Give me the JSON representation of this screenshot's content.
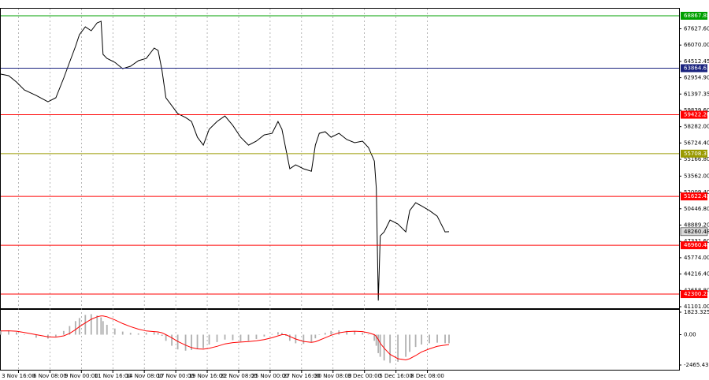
{
  "chart_data": [
    {
      "type": "line",
      "x": [
        0,
        4,
        8,
        12,
        18,
        24,
        28,
        32,
        35,
        38,
        40,
        43,
        46,
        49,
        51,
        52,
        54,
        58,
        62,
        66,
        70,
        74,
        78,
        80,
        82,
        84,
        87,
        90,
        94,
        97,
        100,
        103,
        106,
        110,
        114,
        118,
        122,
        126,
        130,
        134,
        138,
        141,
        143,
        145,
        147,
        150,
        154,
        158,
        160,
        162,
        165,
        168,
        172,
        176,
        180,
        184,
        187,
        190,
        191,
        192,
        193,
        195,
        198,
        202,
        206,
        208,
        211,
        214,
        218,
        222,
        226,
        228
      ],
      "series": [
        {
          "color": "#000000",
          "values": [
            63300,
            63150,
            62540,
            61790,
            61260,
            60660,
            61040,
            62920,
            64430,
            65930,
            67060,
            67810,
            67440,
            68190,
            68340,
            65180,
            64800,
            64430,
            63820,
            64050,
            64580,
            64800,
            65780,
            65560,
            63670,
            61040,
            60280,
            59530,
            59150,
            58780,
            57270,
            56520,
            58030,
            58780,
            59300,
            58400,
            57270,
            56520,
            56900,
            57500,
            57650,
            58780,
            58030,
            56140,
            54260,
            54640,
            54260,
            54030,
            56520,
            57650,
            57800,
            57270,
            57650,
            57050,
            56750,
            56900,
            56290,
            55010,
            52380,
            41690,
            47860,
            48240,
            49370,
            48990,
            48240,
            50270,
            51020,
            50720,
            50270,
            49740,
            48240,
            48260.48
          ]
        }
      ],
      "xlim": [
        0,
        345
      ],
      "xticks": [
        {
          "value": 9,
          "label": "3 Nov 16:00"
        },
        {
          "value": 25,
          "label": "6 Nov 08:00"
        },
        {
          "value": 41,
          "label": "9 Nov 00:00"
        },
        {
          "value": 57,
          "label": "11 Nov 16:00"
        },
        {
          "value": 73,
          "label": "14 Nov 08:00"
        },
        {
          "value": 89,
          "label": "17 Nov 00:00"
        },
        {
          "value": 105,
          "label": "19 Nov 16:00"
        },
        {
          "value": 121,
          "label": "22 Nov 08:00"
        },
        {
          "value": 137,
          "label": "25 Nov 00:00"
        },
        {
          "value": 153,
          "label": "27 Nov 16:00"
        },
        {
          "value": 169,
          "label": "30 Nov 08:00"
        },
        {
          "value": 185,
          "label": "3 Dec 00:00"
        },
        {
          "value": 201,
          "label": "5 Dec 16:00"
        },
        {
          "value": 217,
          "label": "8 Dec 08:00"
        }
      ],
      "ylim": [
        40950,
        69545
      ],
      "yticks": [
        {
          "value": 67627.6,
          "label": "67627.60"
        },
        {
          "value": 66070,
          "label": "66070.00"
        },
        {
          "value": 64512.45,
          "label": "64512.45"
        },
        {
          "value": 62954.9,
          "label": "62954.90"
        },
        {
          "value": 61397.35,
          "label": "61397.35"
        },
        {
          "value": 59839.6,
          "label": "59839.60"
        },
        {
          "value": 58282,
          "label": "58282.00"
        },
        {
          "value": 56724.4,
          "label": "56724.40"
        },
        {
          "value": 55166.8,
          "label": "55166.80"
        },
        {
          "value": 53562,
          "label": "53562.00"
        },
        {
          "value": 52009.4,
          "label": "52009.40"
        },
        {
          "value": 50446.8,
          "label": "50446.80"
        },
        {
          "value": 48889.2,
          "label": "48889.20"
        },
        {
          "value": 47331.6,
          "label": "47331.60"
        },
        {
          "value": 45774,
          "label": "45774.00"
        },
        {
          "value": 44216.4,
          "label": "44216.40"
        },
        {
          "value": 42658.8,
          "label": "42658.80"
        },
        {
          "value": 41101,
          "label": "41101.00"
        }
      ],
      "levels": [
        {
          "value": 68867.88,
          "label": "68867.88",
          "color": "#00a000"
        },
        {
          "value": 63864.63,
          "label": "63864.63",
          "color": "#1a237e"
        },
        {
          "value": 59422.2,
          "label": "59422.20",
          "color": "#ff0000"
        },
        {
          "value": 55708.37,
          "label": "55708.37",
          "color": "#9a9a00"
        },
        {
          "value": 51622.42,
          "label": "51622.42",
          "color": "#ff0000"
        },
        {
          "value": 46960.48,
          "label": "46960.48",
          "color": "#ff0000"
        },
        {
          "value": 42300.22,
          "label": "42300.22",
          "color": "#ff0000"
        }
      ]
    },
    {
      "type": "macd",
      "histogram": {
        "color": "#b0b0b0",
        "values": [
          320,
          350,
          200,
          0,
          -250,
          -320,
          -150,
          300,
          700,
          1100,
          1350,
          1600,
          1660,
          1550,
          1400,
          1100,
          800,
          500,
          250,
          150,
          100,
          150,
          200,
          150,
          -100,
          -500,
          -900,
          -1200,
          -1300,
          -1250,
          -1150,
          -1100,
          -800,
          -600,
          -400,
          -450,
          -550,
          -500,
          -350,
          -150,
          50,
          200,
          150,
          -100,
          -500,
          -700,
          -750,
          -600,
          -300,
          0,
          150,
          300,
          350,
          300,
          250,
          150,
          0,
          -500,
          -900,
          -1500,
          -1800,
          -2100,
          -2300,
          -2200,
          -1800,
          -1400,
          -1000,
          -800,
          -700,
          -650,
          -700,
          -700
        ]
      },
      "signal": {
        "color": "#ff0000",
        "values": [
          300,
          310,
          280,
          180,
          0,
          -180,
          -200,
          -100,
          100,
          400,
          650,
          950,
          1250,
          1450,
          1520,
          1520,
          1450,
          1200,
          900,
          650,
          450,
          300,
          250,
          220,
          150,
          0,
          -250,
          -550,
          -850,
          -1050,
          -1150,
          -1180,
          -1100,
          -950,
          -750,
          -650,
          -600,
          -560,
          -500,
          -400,
          -250,
          -100,
          0,
          0,
          -150,
          -350,
          -550,
          -620,
          -580,
          -450,
          -250,
          -50,
          150,
          250,
          280,
          250,
          150,
          0,
          -150,
          -400,
          -700,
          -1100,
          -1600,
          -1950,
          -2050,
          -1950,
          -1700,
          -1400,
          -1150,
          -950,
          -850,
          -800
        ]
      },
      "ylim": [
        -2849,
        2015
      ],
      "yticks": [
        {
          "value": 1823.325,
          "label": "1823.325"
        },
        {
          "value": 0,
          "label": "0.00"
        },
        {
          "value": -2465.431,
          "label": "-2465.431"
        }
      ]
    }
  ]
}
